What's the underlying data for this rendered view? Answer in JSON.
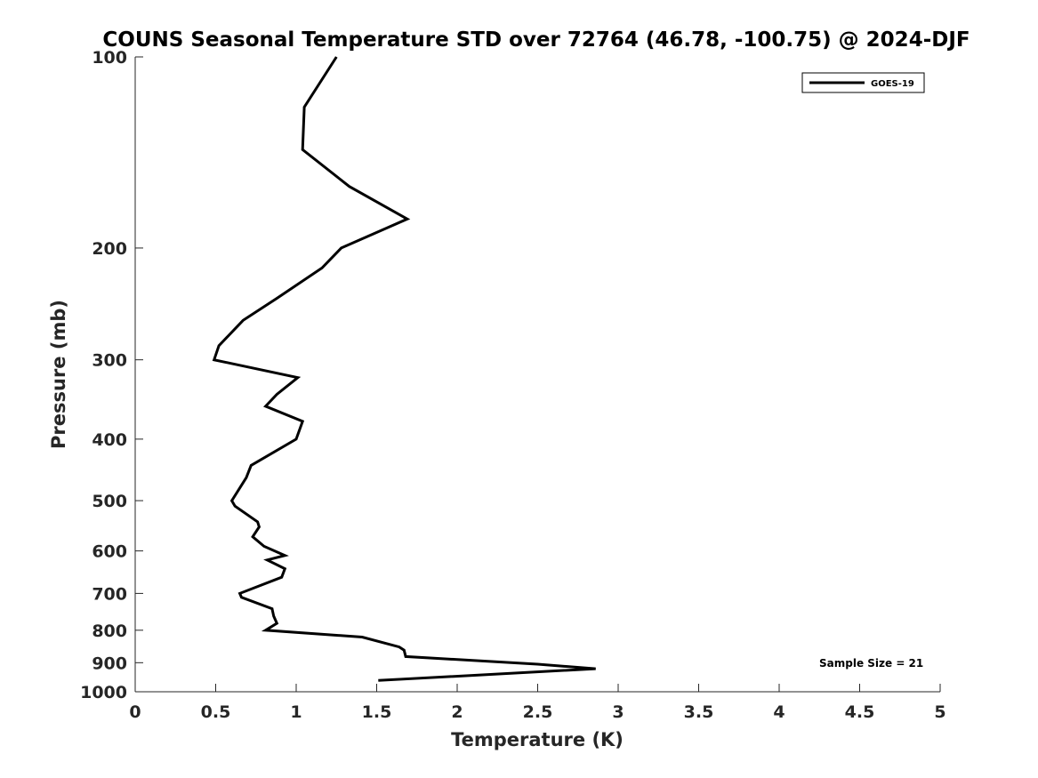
{
  "chart_data": {
    "type": "line",
    "title": "COUNS Seasonal Temperature STD over 72764 (46.78, -100.75) @ 2024-DJF",
    "xlabel": "Temperature (K)",
    "ylabel": "Pressure (mb)",
    "xlim": [
      0,
      5
    ],
    "ylim": [
      100,
      1000
    ],
    "yscale": "log",
    "y_reversed": true,
    "grid": false,
    "legend_position": "top-right",
    "x_ticks": [
      "0",
      "0.5",
      "1",
      "1.5",
      "2",
      "2.5",
      "3",
      "3.5",
      "4",
      "4.5",
      "5"
    ],
    "x_tick_values": [
      0,
      0.5,
      1,
      1.5,
      2,
      2.5,
      3,
      3.5,
      4,
      4.5,
      5
    ],
    "y_ticks": [
      "100",
      "200",
      "300",
      "400",
      "500",
      "600",
      "700",
      "800",
      "900",
      "1000"
    ],
    "y_tick_values": [
      100,
      200,
      300,
      400,
      500,
      600,
      700,
      800,
      900,
      1000
    ],
    "annotation": "Sample Size = 21",
    "series": [
      {
        "name": "GOES-19",
        "color": "#000000",
        "x": [
          1.25,
          1.05,
          1.04,
          1.33,
          1.69,
          1.28,
          1.16,
          0.88,
          0.67,
          0.52,
          0.49,
          1.01,
          0.88,
          0.81,
          1.04,
          1.0,
          0.72,
          0.69,
          0.6,
          0.62,
          0.76,
          0.77,
          0.73,
          0.8,
          0.93,
          0.82,
          0.93,
          0.91,
          0.65,
          0.66,
          0.85,
          0.86,
          0.88,
          0.81,
          1.41,
          1.64,
          1.67,
          1.68,
          2.5,
          2.86,
          1.51
        ],
        "y": [
          100,
          120,
          140,
          160,
          180,
          200,
          215,
          240,
          260,
          285,
          300,
          320,
          340,
          355,
          375,
          400,
          440,
          460,
          500,
          510,
          540,
          550,
          570,
          590,
          610,
          620,
          640,
          660,
          700,
          710,
          740,
          760,
          780,
          800,
          820,
          850,
          860,
          880,
          905,
          920,
          960
        ]
      }
    ]
  }
}
